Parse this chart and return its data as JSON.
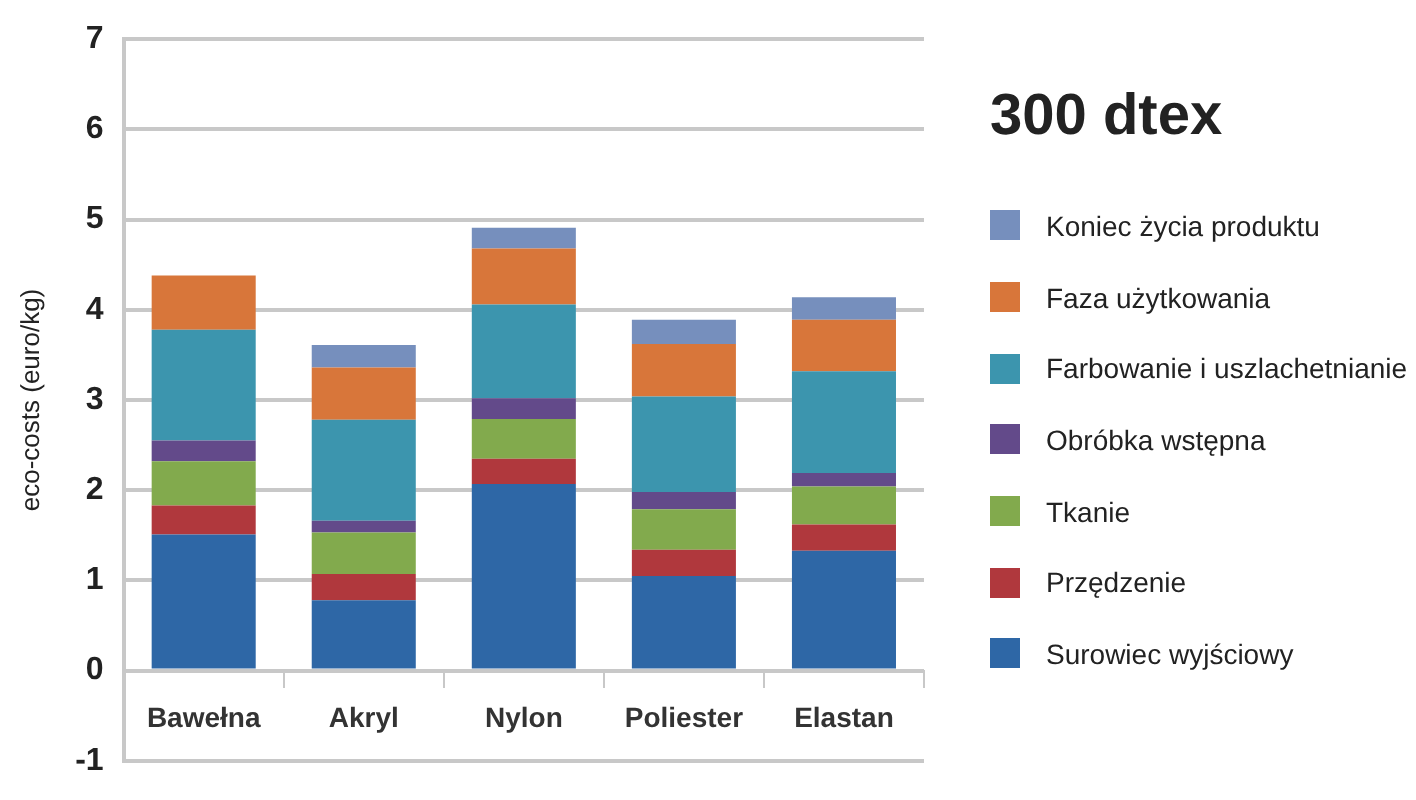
{
  "chart_data": {
    "type": "bar",
    "stacked": true,
    "legend": "right",
    "legend_title": "300 dtex",
    "ylabel": "eco-costs (euro/kg)",
    "categories": [
      "Bawełna",
      "Akryl",
      "Nylon",
      "Poliester",
      "Elastan"
    ],
    "ylim": [
      -1,
      7
    ],
    "yticks": [
      -1,
      0,
      1,
      2,
      3,
      4,
      5,
      6,
      7
    ],
    "grid": "y",
    "series": [
      {
        "name": "Surowiec wyjściowy",
        "color": "#2e67a6",
        "values": [
          1.51,
          0.78,
          2.07,
          1.05,
          1.33
        ]
      },
      {
        "name": "Przędzenie",
        "color": "#b0383d",
        "values": [
          0.32,
          0.29,
          0.28,
          0.29,
          0.29
        ]
      },
      {
        "name": "Tkanie",
        "color": "#82aa4d",
        "values": [
          0.49,
          0.46,
          0.44,
          0.45,
          0.42
        ]
      },
      {
        "name": "Obróbka wstępna",
        "color": "#634a8a",
        "values": [
          0.23,
          0.13,
          0.23,
          0.19,
          0.15
        ]
      },
      {
        "name": "Farbowanie i uszlachetnianie",
        "color": "#3c95ae",
        "values": [
          1.23,
          1.12,
          1.04,
          1.06,
          1.13
        ]
      },
      {
        "name": "Faza użytkowania",
        "color": "#d8763a",
        "values": [
          0.6,
          0.58,
          0.62,
          0.58,
          0.57
        ]
      },
      {
        "name": "Koniec życia produktu",
        "color": "#768fbd",
        "values": [
          null,
          0.25,
          0.23,
          0.27,
          0.25
        ]
      }
    ]
  }
}
